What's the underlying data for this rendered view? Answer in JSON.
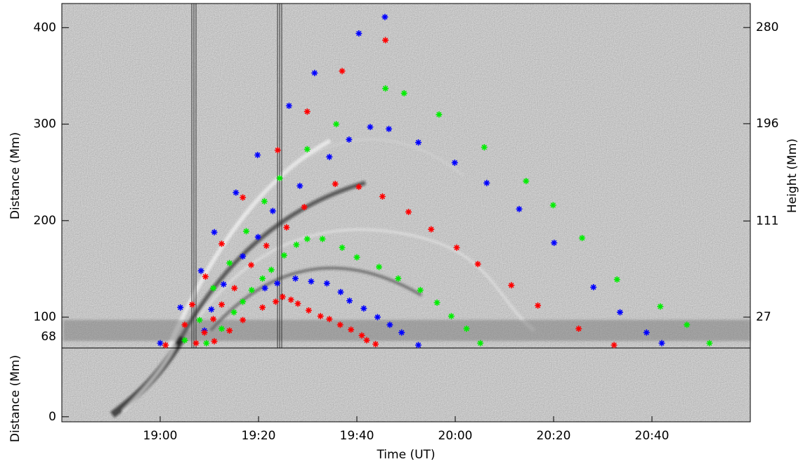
{
  "chart_data": [
    {
      "type": "scatter",
      "ylabel": "Distance (Mm)",
      "y2label": "Height (Mm)",
      "xlim": [
        1120,
        1260
      ],
      "ylim": [
        68,
        425
      ],
      "yticks": [
        100,
        200,
        300,
        400
      ],
      "y2lim": [
        0,
        301
      ],
      "y2ticks": [
        27,
        111,
        196,
        280
      ],
      "series": [
        {
          "color": "#0000ff",
          "x": [
            1140.0,
            1144.1,
            1148.3,
            1151.0,
            1155.4,
            1159.8,
            1166.2,
            1171.4,
            1180.4,
            1185.7,
            1186.5,
            1182.7,
            1178.4,
            1174.4,
            1168.4,
            1162.9,
            1159.9,
            1156.8,
            1152.9,
            1150.4,
            1149.0,
            1192.5,
            1199.9,
            1206.4,
            1213.0,
            1220.1,
            1228.1,
            1233.5,
            1238.9,
            1242.0,
            1161.3,
            1163.8,
            1167.5,
            1170.7,
            1173.9,
            1176.7,
            1178.5,
            1181.4,
            1184.2,
            1186.7,
            1189.1,
            1192.5
          ],
          "y": [
            73,
            110,
            148,
            188,
            229,
            268,
            319,
            353,
            394,
            411,
            295,
            297,
            284,
            266,
            236,
            210,
            183,
            163,
            134,
            108,
            86,
            281,
            260,
            239,
            212,
            177,
            131,
            105,
            84,
            73,
            130,
            135,
            140,
            137,
            135,
            126,
            117,
            109,
            100,
            92,
            84,
            71
          ]
        },
        {
          "color": "#ff0000",
          "x": [
            1145.0,
            1146.5,
            1149.2,
            1152.5,
            1156.8,
            1163.9,
            1169.9,
            1177.0,
            1185.8,
            1175.6,
            1180.4,
            1185.2,
            1190.5,
            1195.1,
            1200.3,
            1204.6,
            1211.4,
            1216.8,
            1225.1,
            1232.3,
            1169.3,
            1165.7,
            1161.6,
            1158.5,
            1155.1,
            1152.5,
            1150.8,
            1149.0,
            1147.3,
            1160.8,
            1163.5,
            1164.9,
            1166.6,
            1168.0,
            1170.2,
            1172.6,
            1174.4,
            1176.6,
            1178.8,
            1181.0,
            1182.0,
            1183.8,
            1141.1,
            1151.0,
            1154.1,
            1156.8
          ],
          "y": [
            92,
            113,
            142,
            176,
            224,
            273,
            313,
            355,
            387,
            238,
            235,
            225,
            209,
            191,
            172,
            155,
            133,
            112,
            88,
            71,
            214,
            193,
            174,
            154,
            130,
            113,
            98,
            84,
            73,
            110,
            116,
            121,
            118,
            114,
            107,
            101,
            98,
            92,
            87,
            81,
            76,
            72,
            71,
            75,
            86,
            97
          ]
        },
        {
          "color": "#00ee00",
          "x": [
            1145.0,
            1148.0,
            1150.8,
            1154.1,
            1157.5,
            1161.2,
            1164.3,
            1169.9,
            1175.8,
            1185.8,
            1189.6,
            1196.7,
            1205.9,
            1214.4,
            1219.9,
            1225.8,
            1232.9,
            1241.7,
            1247.1,
            1251.7,
            1173.0,
            1169.9,
            1167.7,
            1165.2,
            1162.6,
            1160.8,
            1158.6,
            1156.8,
            1155.0,
            1152.5,
            1149.4,
            1177.0,
            1180.0,
            1184.5,
            1188.4,
            1192.9,
            1196.3,
            1199.2,
            1202.3,
            1205.1
          ],
          "y": [
            76,
            97,
            130,
            156,
            189,
            220,
            244,
            274,
            300,
            337,
            332,
            310,
            276,
            241,
            216,
            182,
            139,
            111,
            92,
            73,
            181,
            181,
            175,
            164,
            149,
            140,
            128,
            116,
            105,
            88,
            73,
            172,
            162,
            152,
            140,
            128,
            115,
            101,
            88,
            73
          ]
        }
      ]
    },
    {
      "type": "image",
      "ylabel": "Distance (Mm)",
      "xlabel": "Time (UT)",
      "xlim": [
        1120,
        1260
      ],
      "xticks": [
        {
          "value": 1140,
          "label": "19:00"
        },
        {
          "value": 1160,
          "label": "19:20"
        },
        {
          "value": 1180,
          "label": "19:40"
        },
        {
          "value": 1200,
          "label": "20:00"
        },
        {
          "value": 1220,
          "label": "20:20"
        },
        {
          "value": 1240,
          "label": "20:40"
        }
      ],
      "ylim": [
        -5,
        68
      ],
      "yticks": [
        0,
        68
      ]
    }
  ]
}
